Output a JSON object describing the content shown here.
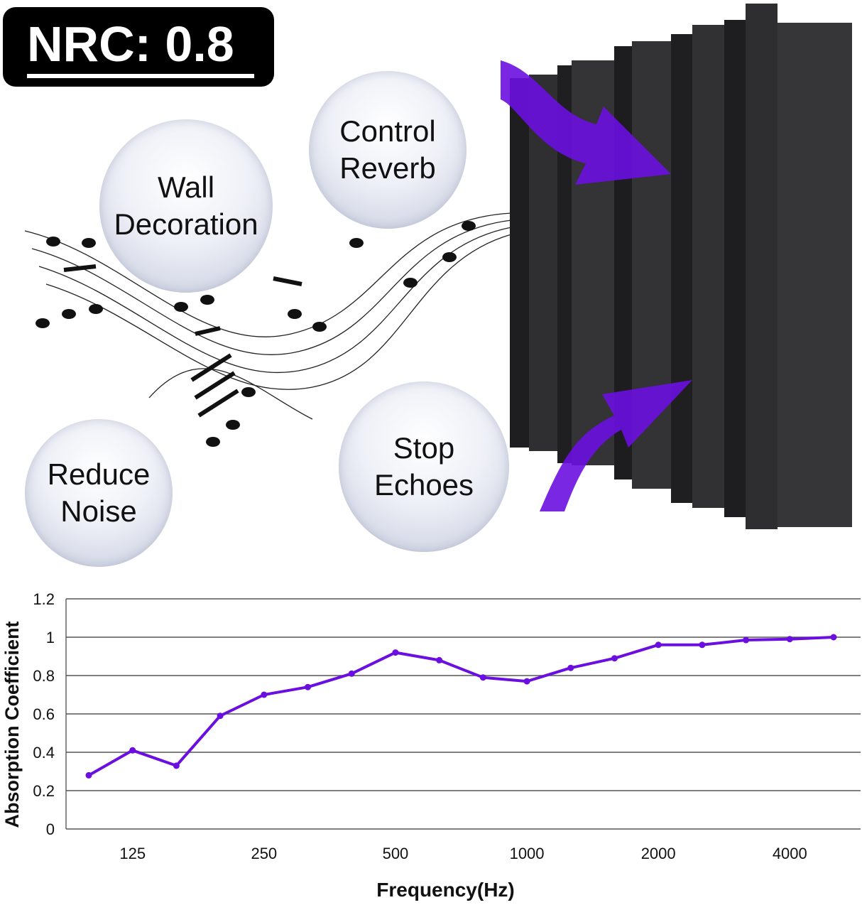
{
  "badge": {
    "label": "NRC: 0.8"
  },
  "bubbles": [
    {
      "text": "Wall\nDecoration"
    },
    {
      "text": "Control\nReverb"
    },
    {
      "text": "Reduce\nNoise"
    },
    {
      "text": "Stop\nEchoes"
    }
  ],
  "colors": {
    "accent": "#6a0fe0",
    "foam": "#2b2b2d",
    "grid": "#555555"
  },
  "chart_data": {
    "type": "line",
    "title": "",
    "xlabel": "Frequency(Hz)",
    "ylabel": "Absorption Coefficient",
    "ylim": [
      0,
      1.2
    ],
    "yticks": [
      "0",
      "0.2",
      "0.4",
      "0.6",
      "0.8",
      "1",
      "1.2"
    ],
    "x": [
      100,
      125,
      160,
      200,
      250,
      315,
      400,
      500,
      630,
      800,
      1000,
      1250,
      1600,
      2000,
      2500,
      3150,
      4000,
      5000
    ],
    "xtick_labels": [
      "125",
      "250",
      "500",
      "1000",
      "2000",
      "4000"
    ],
    "xtick_values": [
      125,
      250,
      500,
      1000,
      2000,
      4000
    ],
    "grid": true,
    "series": [
      {
        "values": [
          0.28,
          0.41,
          0.33,
          0.59,
          0.7,
          0.74,
          0.81,
          0.92,
          0.88,
          0.79,
          0.77,
          0.84,
          0.89,
          0.96,
          0.96,
          0.985,
          0.99,
          1.0
        ]
      }
    ]
  }
}
